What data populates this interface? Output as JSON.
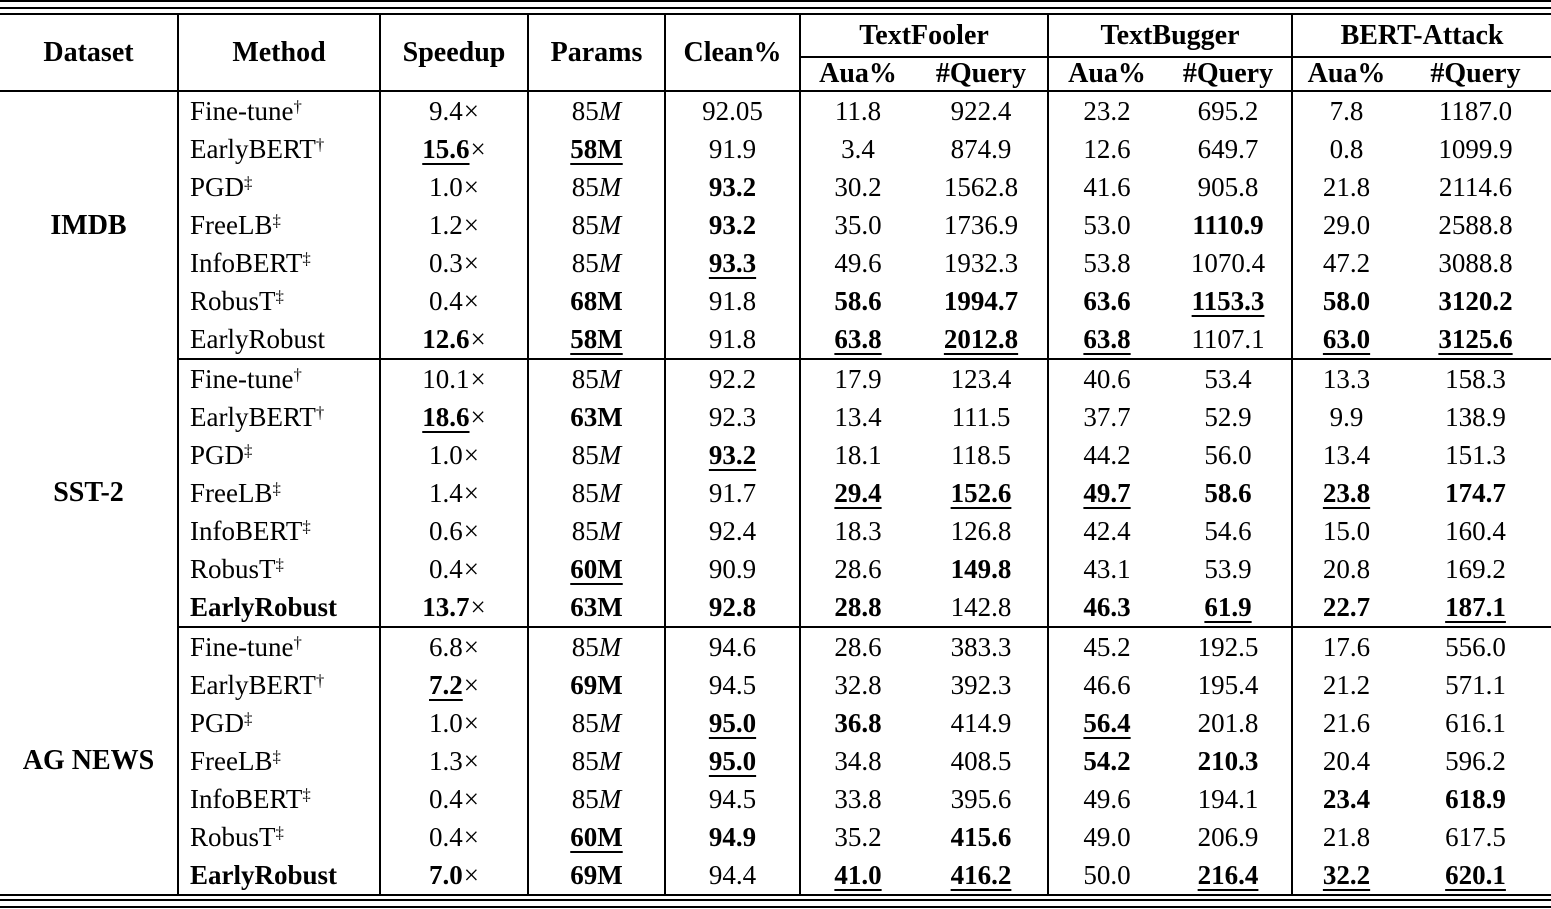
{
  "table": {
    "headers": {
      "dataset": "Dataset",
      "method": "Method",
      "speedup": "Speedup",
      "params": "Params",
      "clean": "Clean%",
      "attacks": [
        {
          "name": "TextFooler",
          "aua": "Aua%",
          "query": "#Query"
        },
        {
          "name": "TextBugger",
          "aua": "Aua%",
          "query": "#Query"
        },
        {
          "name": "BERT-Attack",
          "aua": "Aua%",
          "query": "#Query"
        }
      ]
    },
    "style_legend": {
      "p": "plain",
      "b": "bold",
      "bu": "bold-underline",
      "i": "italic-unit"
    },
    "times_symbol": "×",
    "groups": [
      {
        "dataset": "IMDB",
        "rows": [
          {
            "m": "Fine-tune",
            "sup": "†",
            "mb": false,
            "c": [
              "9.4",
              "85M|i",
              "92.05",
              "11.8",
              "922.4",
              "23.2",
              "695.2",
              "7.8",
              "1187.0"
            ]
          },
          {
            "m": "EarlyBERT",
            "sup": "†",
            "mb": false,
            "c": [
              "15.6|bu",
              "58M|bu",
              "91.9",
              "3.4",
              "874.9",
              "12.6",
              "649.7",
              "0.8",
              "1099.9"
            ]
          },
          {
            "m": "PGD",
            "sup": "‡",
            "mb": false,
            "c": [
              "1.0",
              "85M|i",
              "93.2|b",
              "30.2",
              "1562.8",
              "41.6",
              "905.8",
              "21.8",
              "2114.6"
            ]
          },
          {
            "m": "FreeLB",
            "sup": "‡",
            "mb": false,
            "c": [
              "1.2",
              "85M|i",
              "93.2|b",
              "35.0",
              "1736.9",
              "53.0",
              "1110.9|b",
              "29.0",
              "2588.8"
            ]
          },
          {
            "m": "InfoBERT",
            "sup": "‡",
            "mb": false,
            "c": [
              "0.3",
              "85M|i",
              "93.3|bu",
              "49.6",
              "1932.3",
              "53.8",
              "1070.4",
              "47.2",
              "3088.8"
            ]
          },
          {
            "m": "RobusT",
            "sup": "‡",
            "mb": false,
            "c": [
              "0.4",
              "68M|b",
              "91.8",
              "58.6|b",
              "1994.7|b",
              "63.6|b",
              "1153.3|bu",
              "58.0|b",
              "3120.2|b"
            ]
          },
          {
            "m": "EarlyRobust",
            "sup": "",
            "mb": false,
            "c": [
              "12.6|b",
              "58M|bu",
              "91.8",
              "63.8|bu",
              "2012.8|bu",
              "63.8|bu",
              "1107.1",
              "63.0|bu",
              "3125.6|bu"
            ]
          }
        ]
      },
      {
        "dataset": "SST-2",
        "rows": [
          {
            "m": "Fine-tune",
            "sup": "†",
            "mb": false,
            "c": [
              "10.1",
              "85M|i",
              "92.2",
              "17.9",
              "123.4",
              "40.6",
              "53.4",
              "13.3",
              "158.3"
            ]
          },
          {
            "m": "EarlyBERT",
            "sup": "†",
            "mb": false,
            "c": [
              "18.6|bu",
              "63M|b",
              "92.3",
              "13.4",
              "111.5",
              "37.7",
              "52.9",
              "9.9",
              "138.9"
            ]
          },
          {
            "m": "PGD",
            "sup": "‡",
            "mb": false,
            "c": [
              "1.0",
              "85M|i",
              "93.2|bu",
              "18.1",
              "118.5",
              "44.2",
              "56.0",
              "13.4",
              "151.3"
            ]
          },
          {
            "m": "FreeLB",
            "sup": "‡",
            "mb": false,
            "c": [
              "1.4",
              "85M|i",
              "91.7",
              "29.4|bu",
              "152.6|bu",
              "49.7|bu",
              "58.6|b",
              "23.8|bu",
              "174.7|b"
            ]
          },
          {
            "m": "InfoBERT",
            "sup": "‡",
            "mb": false,
            "c": [
              "0.6",
              "85M|i",
              "92.4",
              "18.3",
              "126.8",
              "42.4",
              "54.6",
              "15.0",
              "160.4"
            ]
          },
          {
            "m": "RobusT",
            "sup": "‡",
            "mb": false,
            "c": [
              "0.4",
              "60M|bu",
              "90.9",
              "28.6",
              "149.8|b",
              "43.1",
              "53.9",
              "20.8",
              "169.2"
            ]
          },
          {
            "m": "EarlyRobust",
            "sup": "",
            "mb": true,
            "c": [
              "13.7|b",
              "63M|b",
              "92.8|b",
              "28.8|b",
              "142.8",
              "46.3|b",
              "61.9|bu",
              "22.7|b",
              "187.1|bu"
            ]
          }
        ]
      },
      {
        "dataset": "AG NEWS",
        "rows": [
          {
            "m": "Fine-tune",
            "sup": "†",
            "mb": false,
            "c": [
              "6.8",
              "85M|i",
              "94.6",
              "28.6",
              "383.3",
              "45.2",
              "192.5",
              "17.6",
              "556.0"
            ]
          },
          {
            "m": "EarlyBERT",
            "sup": "†",
            "mb": false,
            "c": [
              "7.2|bu",
              "69M|b",
              "94.5",
              "32.8",
              "392.3",
              "46.6",
              "195.4",
              "21.2",
              "571.1"
            ]
          },
          {
            "m": "PGD",
            "sup": "‡",
            "mb": false,
            "c": [
              "1.0",
              "85M|i",
              "95.0|bu",
              "36.8|b",
              "414.9",
              "56.4|bu",
              "201.8",
              "21.6",
              "616.1"
            ]
          },
          {
            "m": "FreeLB",
            "sup": "‡",
            "mb": false,
            "c": [
              "1.3",
              "85M|i",
              "95.0|bu",
              "34.8",
              "408.5",
              "54.2|b",
              "210.3|b",
              "20.4",
              "596.2"
            ]
          },
          {
            "m": "InfoBERT",
            "sup": "‡",
            "mb": false,
            "c": [
              "0.4",
              "85M|i",
              "94.5",
              "33.8",
              "395.6",
              "49.6",
              "194.1",
              "23.4|b",
              "618.9|b"
            ]
          },
          {
            "m": "RobusT",
            "sup": "‡",
            "mb": false,
            "c": [
              "0.4",
              "60M|bu",
              "94.9|b",
              "35.2",
              "415.6|b",
              "49.0",
              "206.9",
              "21.8",
              "617.5"
            ]
          },
          {
            "m": "EarlyRobust",
            "sup": "",
            "mb": true,
            "c": [
              "7.0|b",
              "69M|b",
              "94.4",
              "41.0|bu",
              "416.2|bu",
              "50.0",
              "216.4|bu",
              "32.2|bu",
              "620.1|bu"
            ]
          }
        ]
      }
    ]
  }
}
